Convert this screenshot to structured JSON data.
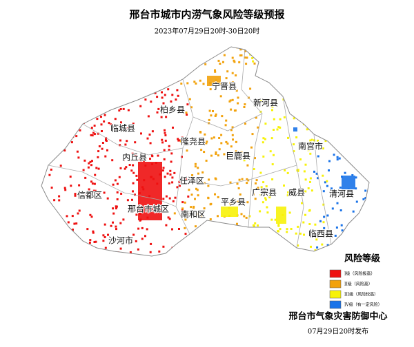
{
  "header": {
    "title": "邢台市城市内涝气象风险等级预报",
    "subtitle": "2023年07月29日20时-30日20时"
  },
  "map": {
    "labels": [
      "宁晋县",
      "新河县",
      "柏乡县",
      "临城县",
      "隆尧县",
      "巨鹿县",
      "南宫市",
      "内丘县",
      "任泽区",
      "信都区",
      "广宗县",
      "威县",
      "清河县",
      "平乡县",
      "邢台市城区",
      "南和区",
      "沙河市",
      "临西县"
    ]
  },
  "legend": {
    "title": "风险等级",
    "items": [
      {
        "label": "I级（风险极高）",
        "color": "#ee1111"
      },
      {
        "label": "II级（风险高）",
        "color": "#f2a20c"
      },
      {
        "label": "III级（风险较高）",
        "color": "#f7f20a"
      },
      {
        "label": "IV级（有一定风险）",
        "color": "#1a73e8"
      }
    ]
  },
  "footer": {
    "agency": "邢台市气象灾害防御中心",
    "issued": "07月29日20时发布"
  }
}
